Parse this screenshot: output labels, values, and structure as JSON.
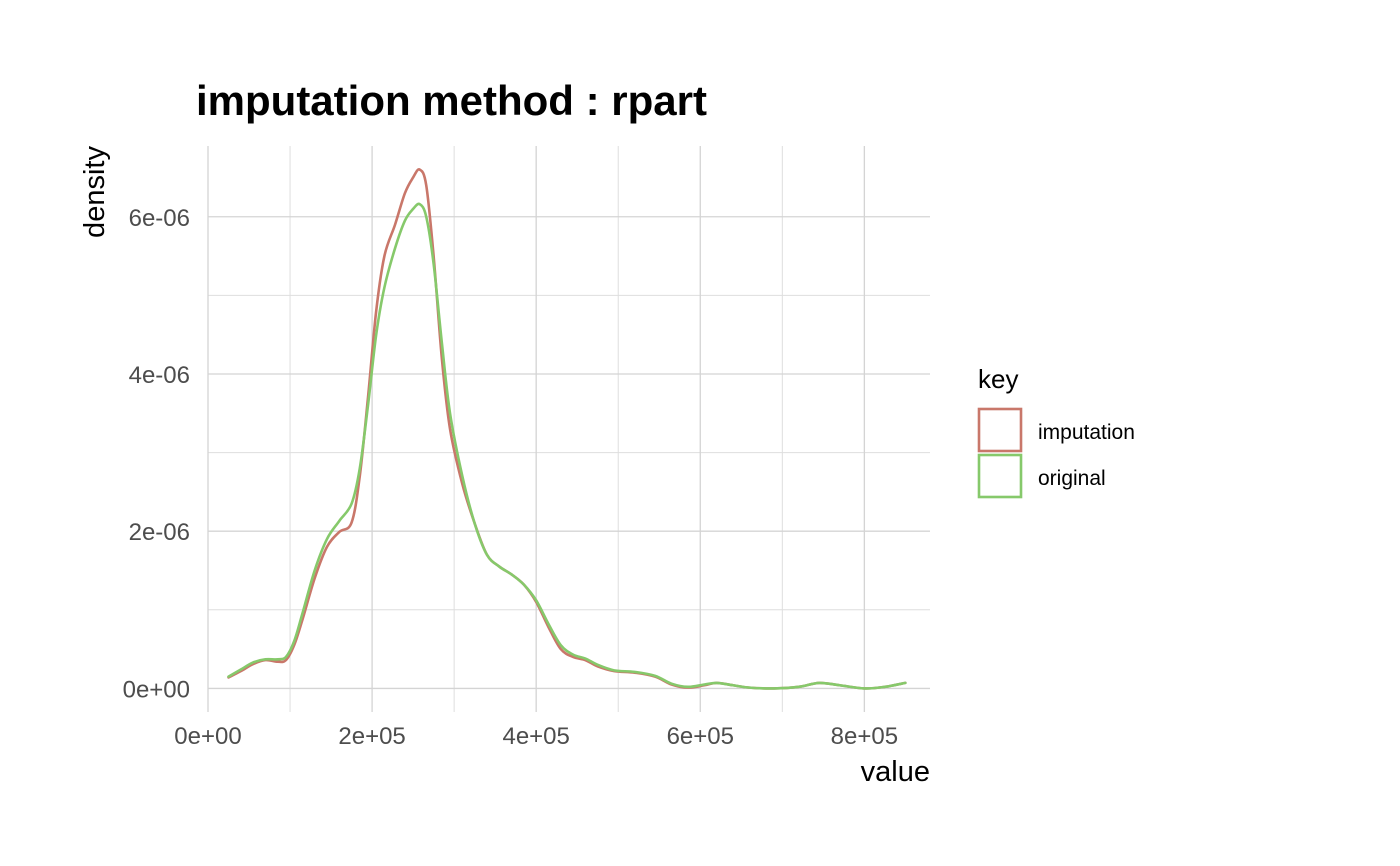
{
  "chart_data": {
    "type": "line",
    "title": "imputation method : rpart",
    "xlabel": "value",
    "ylabel": "density",
    "xlim": [
      0,
      880000
    ],
    "ylim": [
      -3e-07,
      6.9e-06
    ],
    "x_ticks": [
      0,
      200000,
      400000,
      600000,
      800000
    ],
    "x_tick_labels": [
      "0e+00",
      "2e+05",
      "4e+05",
      "6e+05",
      "8e+05"
    ],
    "y_ticks": [
      0,
      2e-06,
      4e-06,
      6e-06
    ],
    "y_tick_labels": [
      "0e+00",
      "2e-06",
      "4e-06",
      "6e-06"
    ],
    "grid": true,
    "legend": {
      "title": "key",
      "position": "right"
    },
    "series": [
      {
        "name": "imputation",
        "color": "#C9776A",
        "points": [
          [
            25000,
            1.4e-07
          ],
          [
            40000,
            2.2e-07
          ],
          [
            55000,
            3.1e-07
          ],
          [
            70000,
            3.6e-07
          ],
          [
            85000,
            3.4e-07
          ],
          [
            95000,
            3.6e-07
          ],
          [
            105000,
            5.5e-07
          ],
          [
            115000,
            8.7e-07
          ],
          [
            130000,
            1.4e-06
          ],
          [
            145000,
            1.8e-06
          ],
          [
            160000,
            1.99e-06
          ],
          [
            175000,
            2.11e-06
          ],
          [
            185000,
            2.7e-06
          ],
          [
            195000,
            3.7e-06
          ],
          [
            205000,
            4.8e-06
          ],
          [
            215000,
            5.5e-06
          ],
          [
            228000,
            5.9e-06
          ],
          [
            240000,
            6.3e-06
          ],
          [
            250000,
            6.5e-06
          ],
          [
            258000,
            6.6e-06
          ],
          [
            266000,
            6.4e-06
          ],
          [
            275000,
            5.5e-06
          ],
          [
            285000,
            4.2e-06
          ],
          [
            295000,
            3.3e-06
          ],
          [
            310000,
            2.6e-06
          ],
          [
            325000,
            2.1e-06
          ],
          [
            340000,
            1.7e-06
          ],
          [
            355000,
            1.55e-06
          ],
          [
            370000,
            1.45e-06
          ],
          [
            385000,
            1.32e-06
          ],
          [
            400000,
            1.1e-06
          ],
          [
            415000,
            7.8e-07
          ],
          [
            430000,
            5e-07
          ],
          [
            445000,
            4e-07
          ],
          [
            460000,
            3.6e-07
          ],
          [
            475000,
            2.8e-07
          ],
          [
            495000,
            2.2e-07
          ],
          [
            520000,
            2e-07
          ],
          [
            545000,
            1.5e-07
          ],
          [
            565000,
            5e-08
          ],
          [
            585000,
            1e-08
          ],
          [
            605000,
            4e-08
          ],
          [
            620000,
            7e-08
          ],
          [
            640000,
            4e-08
          ],
          [
            660000,
            1e-08
          ],
          [
            690000,
            0.0
          ],
          [
            720000,
            2e-08
          ],
          [
            745000,
            7e-08
          ],
          [
            770000,
            4e-08
          ],
          [
            800000,
            0.0
          ],
          [
            825000,
            2e-08
          ],
          [
            850000,
            7e-08
          ]
        ]
      },
      {
        "name": "original",
        "color": "#86C96B",
        "points": [
          [
            25000,
            1.5e-07
          ],
          [
            40000,
            2.4e-07
          ],
          [
            55000,
            3.3e-07
          ],
          [
            70000,
            3.7e-07
          ],
          [
            85000,
            3.7e-07
          ],
          [
            95000,
            4e-07
          ],
          [
            105000,
            6e-07
          ],
          [
            115000,
            9.5e-07
          ],
          [
            130000,
            1.5e-06
          ],
          [
            145000,
            1.9e-06
          ],
          [
            160000,
            2.13e-06
          ],
          [
            175000,
            2.35e-06
          ],
          [
            185000,
            2.8e-06
          ],
          [
            195000,
            3.6e-06
          ],
          [
            205000,
            4.5e-06
          ],
          [
            215000,
            5.1e-06
          ],
          [
            228000,
            5.6e-06
          ],
          [
            240000,
            5.95e-06
          ],
          [
            250000,
            6.1e-06
          ],
          [
            258000,
            6.16e-06
          ],
          [
            266000,
            6e-06
          ],
          [
            275000,
            5.4e-06
          ],
          [
            285000,
            4.4e-06
          ],
          [
            295000,
            3.5e-06
          ],
          [
            310000,
            2.7e-06
          ],
          [
            325000,
            2.1e-06
          ],
          [
            340000,
            1.7e-06
          ],
          [
            355000,
            1.55e-06
          ],
          [
            370000,
            1.45e-06
          ],
          [
            385000,
            1.32e-06
          ],
          [
            400000,
            1.12e-06
          ],
          [
            415000,
            8.2e-07
          ],
          [
            430000,
            5.5e-07
          ],
          [
            445000,
            4.3e-07
          ],
          [
            460000,
            3.8e-07
          ],
          [
            475000,
            3e-07
          ],
          [
            495000,
            2.3e-07
          ],
          [
            520000,
            2.1e-07
          ],
          [
            545000,
            1.6e-07
          ],
          [
            565000,
            6e-08
          ],
          [
            585000,
            2e-08
          ],
          [
            605000,
            5e-08
          ],
          [
            620000,
            7e-08
          ],
          [
            640000,
            4e-08
          ],
          [
            660000,
            1e-08
          ],
          [
            690000,
            0.0
          ],
          [
            720000,
            2e-08
          ],
          [
            745000,
            7e-08
          ],
          [
            770000,
            4e-08
          ],
          [
            800000,
            0.0
          ],
          [
            825000,
            2e-08
          ],
          [
            850000,
            7e-08
          ]
        ]
      }
    ]
  }
}
